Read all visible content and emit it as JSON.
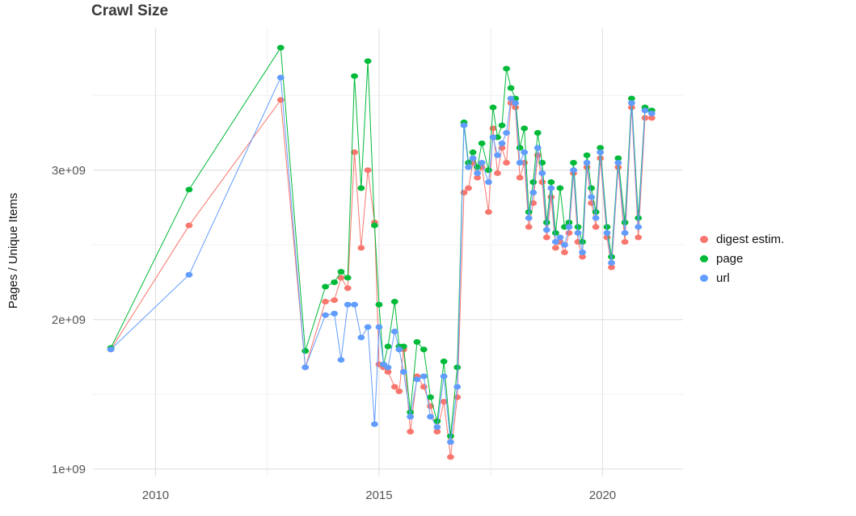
{
  "chart_data": {
    "type": "line",
    "title": "Crawl Size",
    "ylabel": "Pages / Unique Items",
    "xlabel": "",
    "unit": "items (x1e9)",
    "legend_position": "right",
    "grid": true,
    "grid_major_color": "#e2e2e2",
    "grid_minor_color": "#f0f0f0",
    "xlim": [
      2008.6,
      2021.8
    ],
    "ylim": [
      0.95,
      3.95
    ],
    "x_ticks": [
      {
        "value": 2010,
        "label": "2010"
      },
      {
        "value": 2015,
        "label": "2015"
      },
      {
        "value": 2020,
        "label": "2020"
      }
    ],
    "y_ticks": [
      {
        "value": 1,
        "label": "1e+09"
      },
      {
        "value": 2,
        "label": "2e+09"
      },
      {
        "value": 3,
        "label": "3e+09"
      }
    ],
    "minor_x": [
      2012.5,
      2017.5
    ],
    "minor_y": [
      1.5,
      2.5,
      3.5
    ],
    "x": [
      2009.0,
      2010.75,
      2012.8,
      2013.35,
      2013.8,
      2014.0,
      2014.15,
      2014.3,
      2014.45,
      2014.6,
      2014.75,
      2014.9,
      2015.0,
      2015.1,
      2015.2,
      2015.35,
      2015.45,
      2015.55,
      2015.7,
      2015.85,
      2016.0,
      2016.15,
      2016.3,
      2016.45,
      2016.6,
      2016.75,
      2016.9,
      2017.0,
      2017.1,
      2017.2,
      2017.3,
      2017.45,
      2017.55,
      2017.65,
      2017.75,
      2017.85,
      2017.95,
      2018.05,
      2018.15,
      2018.25,
      2018.35,
      2018.45,
      2018.55,
      2018.65,
      2018.75,
      2018.85,
      2018.95,
      2019.05,
      2019.15,
      2019.25,
      2019.35,
      2019.45,
      2019.55,
      2019.65,
      2019.75,
      2019.85,
      2019.95,
      2020.1,
      2020.2,
      2020.35,
      2020.5,
      2020.65,
      2020.8,
      2020.95,
      2021.1
    ],
    "series": [
      {
        "name": "digest estim.",
        "color": "#F8766D",
        "values": [
          1.8,
          2.63,
          3.47,
          1.68,
          2.12,
          2.13,
          2.28,
          2.21,
          3.12,
          2.48,
          3.0,
          2.65,
          1.7,
          1.68,
          1.65,
          1.55,
          1.52,
          1.8,
          1.25,
          1.62,
          1.55,
          1.42,
          1.25,
          1.45,
          1.08,
          1.48,
          2.85,
          2.88,
          3.05,
          2.95,
          3.02,
          2.72,
          3.28,
          2.98,
          3.15,
          3.05,
          3.45,
          3.42,
          2.95,
          3.05,
          2.62,
          2.78,
          3.1,
          2.92,
          2.55,
          2.82,
          2.48,
          2.52,
          2.45,
          2.58,
          2.98,
          2.52,
          2.42,
          3.02,
          2.78,
          2.62,
          3.08,
          2.55,
          2.35,
          3.02,
          2.52,
          3.42,
          2.55,
          3.35,
          3.35
        ]
      },
      {
        "name": "page",
        "color": "#00BA38",
        "values": [
          1.81,
          2.87,
          3.82,
          1.79,
          2.22,
          2.25,
          2.32,
          2.28,
          3.63,
          2.88,
          3.73,
          2.63,
          2.1,
          1.7,
          1.82,
          2.12,
          1.82,
          1.82,
          1.38,
          1.85,
          1.8,
          1.48,
          1.32,
          1.72,
          1.22,
          1.68,
          3.32,
          3.05,
          3.12,
          3.02,
          3.18,
          3.0,
          3.42,
          3.22,
          3.3,
          3.68,
          3.55,
          3.48,
          3.15,
          3.28,
          2.72,
          2.92,
          3.25,
          3.05,
          2.65,
          2.92,
          2.58,
          2.88,
          2.62,
          2.65,
          3.05,
          2.62,
          2.52,
          3.1,
          2.88,
          2.72,
          3.15,
          2.62,
          2.42,
          3.08,
          2.65,
          3.48,
          2.68,
          3.42,
          3.4
        ]
      },
      {
        "name": "url",
        "color": "#619CFF",
        "values": [
          1.8,
          2.3,
          3.62,
          1.68,
          2.03,
          2.04,
          1.73,
          2.1,
          2.1,
          1.88,
          1.95,
          1.3,
          1.95,
          1.7,
          1.68,
          1.92,
          1.8,
          1.65,
          1.35,
          1.6,
          1.62,
          1.35,
          1.28,
          1.62,
          1.18,
          1.55,
          3.3,
          3.02,
          3.08,
          2.98,
          3.05,
          2.92,
          3.22,
          3.1,
          3.18,
          3.25,
          3.48,
          3.45,
          3.05,
          3.12,
          2.68,
          2.85,
          3.15,
          2.98,
          2.6,
          2.88,
          2.52,
          2.55,
          2.5,
          2.62,
          3.0,
          2.58,
          2.45,
          3.05,
          2.82,
          2.68,
          3.12,
          2.58,
          2.38,
          3.05,
          2.58,
          3.45,
          2.62,
          3.4,
          3.38
        ]
      }
    ]
  }
}
